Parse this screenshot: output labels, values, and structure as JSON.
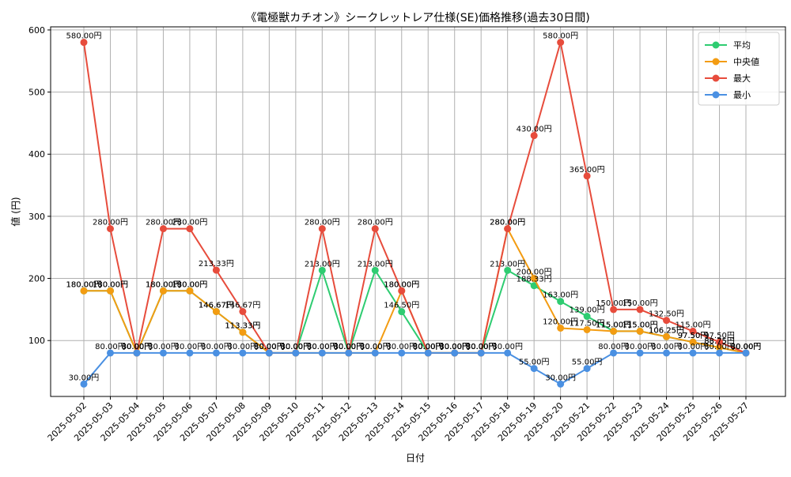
{
  "chart_data": {
    "type": "line",
    "title": "《電極獣カチオン》シークレットレア仕様(SE)価格推移(過去30日間)",
    "xlabel": "日付",
    "ylabel": "値 (円)",
    "ylim": [
      10,
      605
    ],
    "yticks": [
      100,
      200,
      300,
      400,
      500,
      600
    ],
    "grid": true,
    "legend_position": "top-right",
    "label_suffix": "円",
    "categories": [
      "2025-05-02",
      "2025-05-03",
      "2025-05-04",
      "2025-05-05",
      "2025-05-06",
      "2025-05-07",
      "2025-05-08",
      "2025-05-09",
      "2025-05-10",
      "2025-05-11",
      "2025-05-12",
      "2025-05-13",
      "2025-05-14",
      "2025-05-15",
      "2025-05-16",
      "2025-05-17",
      "2025-05-18",
      "2025-05-19",
      "2025-05-20",
      "2025-05-21",
      "2025-05-22",
      "2025-05-23",
      "2025-05-24",
      "2025-05-25",
      "2025-05-26",
      "2025-05-27"
    ],
    "series": [
      {
        "name": "平均",
        "color": "#2ecc71",
        "values": [
          180.0,
          180.0,
          80.0,
          180.0,
          180.0,
          146.67,
          113.33,
          80.0,
          80.0,
          213.0,
          80.0,
          213.0,
          146.5,
          80.0,
          80.0,
          80.0,
          213.0,
          188.33,
          163.0,
          139.0,
          115.0,
          115.0,
          106.25,
          97.5,
          88.75,
          80.0
        ]
      },
      {
        "name": "中央値",
        "color": "#f39c12",
        "values": [
          180.0,
          180.0,
          80.0,
          180.0,
          180.0,
          146.67,
          113.33,
          80.0,
          80.0,
          80.0,
          80.0,
          80.0,
          180.0,
          80.0,
          80.0,
          80.0,
          280.0,
          200.0,
          120.0,
          117.5,
          115.0,
          115.0,
          106.25,
          97.5,
          88.75,
          80.0
        ]
      },
      {
        "name": "最大",
        "color": "#e74c3c",
        "values": [
          580.0,
          280.0,
          80.0,
          280.0,
          280.0,
          213.33,
          146.67,
          80.0,
          80.0,
          280.0,
          80.0,
          280.0,
          180.0,
          80.0,
          80.0,
          80.0,
          280.0,
          430.0,
          580.0,
          365.0,
          150.0,
          150.0,
          132.5,
          115.0,
          97.5,
          80.0
        ]
      },
      {
        "name": "最小",
        "color": "#4a90e2",
        "values": [
          30.0,
          80.0,
          80.0,
          80.0,
          80.0,
          80.0,
          80.0,
          80.0,
          80.0,
          80.0,
          80.0,
          80.0,
          80.0,
          80.0,
          80.0,
          80.0,
          80.0,
          55.0,
          30.0,
          55.0,
          80.0,
          80.0,
          80.0,
          80.0,
          80.0,
          80.0
        ]
      }
    ]
  }
}
